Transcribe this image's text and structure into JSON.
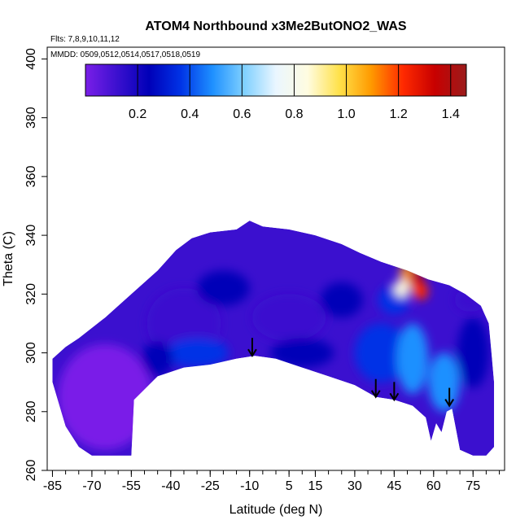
{
  "chart_data": {
    "type": "heatmap",
    "title": "ATOM4 Northbound x3Me2ButONO2_WAS",
    "flights_label": "Flts: 7,8,9,10,11,12",
    "dates_label": "MMDD: 0509,0512,0514,0517,0518,0519",
    "xlabel": "Latitude (deg N)",
    "ylabel": "Theta (C)",
    "xlim": [
      -87,
      87
    ],
    "ylim": [
      260,
      404
    ],
    "x_ticks": [
      -85,
      -70,
      -55,
      -40,
      -25,
      -10,
      5,
      15,
      30,
      45,
      60,
      75
    ],
    "y_ticks": [
      260,
      280,
      300,
      320,
      340,
      360,
      380,
      400
    ],
    "colorbar": {
      "ticks": [
        0.2,
        0.4,
        0.6,
        0.8,
        1.0,
        1.2,
        1.4
      ],
      "tick_labels": [
        "0.2",
        "0.4",
        "0.6",
        "0.8",
        "1.0",
        "1.2",
        "1.4"
      ],
      "range": [
        0.0,
        1.46
      ],
      "colors": [
        "#7a1fe8",
        "#3b10cf",
        "#0000b8",
        "#0033e6",
        "#1e90ff",
        "#7fd0ff",
        "#eaf6ff",
        "#fffce0",
        "#ffe14a",
        "#ff9a00",
        "#ff2a00",
        "#c80000",
        "#9b1c1c"
      ]
    },
    "bottom_boundary": [
      {
        "lat": -85,
        "theta": 290
      },
      {
        "lat": -80,
        "theta": 275
      },
      {
        "lat": -75,
        "theta": 268
      },
      {
        "lat": -70,
        "theta": 265
      },
      {
        "lat": -62,
        "theta": 265
      },
      {
        "lat": -55,
        "theta": 265
      },
      {
        "lat": -54,
        "theta": 284
      },
      {
        "lat": -45,
        "theta": 292
      },
      {
        "lat": -35,
        "theta": 295
      },
      {
        "lat": -25,
        "theta": 296
      },
      {
        "lat": -15,
        "theta": 298
      },
      {
        "lat": -8,
        "theta": 299
      },
      {
        "lat": 0,
        "theta": 298
      },
      {
        "lat": 10,
        "theta": 295
      },
      {
        "lat": 20,
        "theta": 292
      },
      {
        "lat": 30,
        "theta": 289
      },
      {
        "lat": 38,
        "theta": 285
      },
      {
        "lat": 45,
        "theta": 284
      },
      {
        "lat": 52,
        "theta": 282
      },
      {
        "lat": 57,
        "theta": 278
      },
      {
        "lat": 59,
        "theta": 270
      },
      {
        "lat": 61,
        "theta": 276
      },
      {
        "lat": 63,
        "theta": 273
      },
      {
        "lat": 65,
        "theta": 280
      },
      {
        "lat": 67,
        "theta": 281
      },
      {
        "lat": 70,
        "theta": 267
      },
      {
        "lat": 75,
        "theta": 265
      },
      {
        "lat": 80,
        "theta": 265
      },
      {
        "lat": 83,
        "theta": 268
      }
    ],
    "top_boundary": [
      {
        "lat": -85,
        "theta": 298
      },
      {
        "lat": -80,
        "theta": 302
      },
      {
        "lat": -75,
        "theta": 305
      },
      {
        "lat": -65,
        "theta": 312
      },
      {
        "lat": -55,
        "theta": 320
      },
      {
        "lat": -45,
        "theta": 328
      },
      {
        "lat": -38,
        "theta": 335
      },
      {
        "lat": -32,
        "theta": 339
      },
      {
        "lat": -25,
        "theta": 341
      },
      {
        "lat": -15,
        "theta": 342
      },
      {
        "lat": -10,
        "theta": 345
      },
      {
        "lat": -5,
        "theta": 343
      },
      {
        "lat": 5,
        "theta": 342
      },
      {
        "lat": 15,
        "theta": 340
      },
      {
        "lat": 25,
        "theta": 337
      },
      {
        "lat": 32,
        "theta": 334
      },
      {
        "lat": 40,
        "theta": 331
      },
      {
        "lat": 50,
        "theta": 328
      },
      {
        "lat": 58,
        "theta": 325
      },
      {
        "lat": 66,
        "theta": 323
      },
      {
        "lat": 72,
        "theta": 320
      },
      {
        "lat": 78,
        "theta": 316
      },
      {
        "lat": 81,
        "theta": 310
      },
      {
        "lat": 82,
        "theta": 300
      },
      {
        "lat": 83,
        "theta": 290
      },
      {
        "lat": 83,
        "theta": 268
      }
    ],
    "features": [
      {
        "lat": -65,
        "theta": 285,
        "rx": 18,
        "ry": 18,
        "value": 0.05
      },
      {
        "lat": -35,
        "theta": 310,
        "rx": 14,
        "ry": 12,
        "value": 0.12
      },
      {
        "lat": -20,
        "theta": 322,
        "rx": 10,
        "ry": 6,
        "value": 0.2
      },
      {
        "lat": -30,
        "theta": 300,
        "rx": 12,
        "ry": 5,
        "value": 0.38
      },
      {
        "lat": -45,
        "theta": 298,
        "rx": 6,
        "ry": 6,
        "value": 0.3
      },
      {
        "lat": 5,
        "theta": 312,
        "rx": 14,
        "ry": 8,
        "value": 0.16
      },
      {
        "lat": 10,
        "theta": 300,
        "rx": 12,
        "ry": 5,
        "value": 0.2
      },
      {
        "lat": 25,
        "theta": 318,
        "rx": 8,
        "ry": 6,
        "value": 0.22
      },
      {
        "lat": 40,
        "theta": 300,
        "rx": 10,
        "ry": 10,
        "value": 0.42
      },
      {
        "lat": 52,
        "theta": 298,
        "rx": 6,
        "ry": 12,
        "value": 0.5
      },
      {
        "lat": 45,
        "theta": 318,
        "rx": 6,
        "ry": 5,
        "value": 0.35
      },
      {
        "lat": 50,
        "theta": 327,
        "rx": 3,
        "ry": 3,
        "value": 1.1
      },
      {
        "lat": 53,
        "theta": 325,
        "rx": 3,
        "ry": 3,
        "value": 1.35
      },
      {
        "lat": 55,
        "theta": 321,
        "rx": 3,
        "ry": 3,
        "value": 1.2
      },
      {
        "lat": 48,
        "theta": 322,
        "rx": 3,
        "ry": 3,
        "value": 0.85
      },
      {
        "lat": 64,
        "theta": 290,
        "rx": 6,
        "ry": 10,
        "value": 0.45
      },
      {
        "lat": 75,
        "theta": 300,
        "rx": 6,
        "ry": 12,
        "value": 0.3
      },
      {
        "lat": 74,
        "theta": 318,
        "rx": 6,
        "ry": 4,
        "value": 0.1
      }
    ],
    "arrows": [
      {
        "lat": -9,
        "theta": 299
      },
      {
        "lat": 38,
        "theta": 285
      },
      {
        "lat": 45,
        "theta": 284
      },
      {
        "lat": 66,
        "theta": 282
      }
    ]
  }
}
